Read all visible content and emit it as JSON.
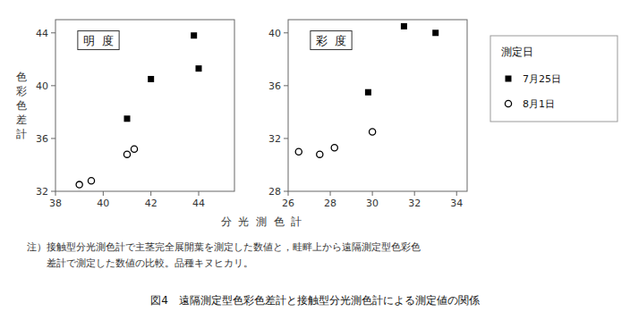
{
  "chart_data": [
    {
      "type": "scatter",
      "title": "明  度",
      "xlim": [
        38,
        45.5
      ],
      "ylim": [
        32,
        45
      ],
      "xticks": [
        38,
        40,
        42,
        44
      ],
      "yticks": [
        32,
        36,
        40,
        44
      ],
      "grid": false,
      "series": [
        {
          "name": "7月25日",
          "color": "#000000",
          "marker": "square",
          "x": [
            41.0,
            42.0,
            43.8,
            44.0
          ],
          "values": [
            37.5,
            40.5,
            43.8,
            41.3
          ]
        },
        {
          "name": "8月1日",
          "color": "#000000",
          "marker": "circle_open",
          "x": [
            39.0,
            39.5,
            41.0,
            41.3
          ],
          "values": [
            32.5,
            32.8,
            34.8,
            35.2
          ]
        }
      ]
    },
    {
      "type": "scatter",
      "title": "彩  度",
      "xlim": [
        26,
        34.5
      ],
      "ylim": [
        28,
        41
      ],
      "xticks": [
        26,
        28,
        30,
        32,
        34
      ],
      "yticks": [
        28,
        32,
        36,
        40
      ],
      "grid": false,
      "series": [
        {
          "name": "7月25日",
          "color": "#000000",
          "marker": "square",
          "x": [
            29.8,
            31.5,
            33.0
          ],
          "values": [
            35.5,
            40.5,
            40.0
          ]
        },
        {
          "name": "8月1日",
          "color": "#000000",
          "marker": "circle_open",
          "x": [
            26.5,
            27.5,
            28.2,
            30.0
          ],
          "values": [
            31.0,
            30.8,
            31.3,
            32.5
          ]
        }
      ]
    }
  ],
  "ylabel": "色\n彩\n色\n差\n計",
  "xlabel": "分  光  測  色  計",
  "legend_title": "測定日",
  "annotations": [
    "注）接触型分光測色計で主茎完全展開葉を測定した数値と，畦畔上から遠隔測定型色彩色",
    "　　差計で測定した数値の比較。品種キヌヒカリ。"
  ],
  "title": "図4　遠隔測定型色彩色差計と接触型分光測色計による測定値の関係"
}
